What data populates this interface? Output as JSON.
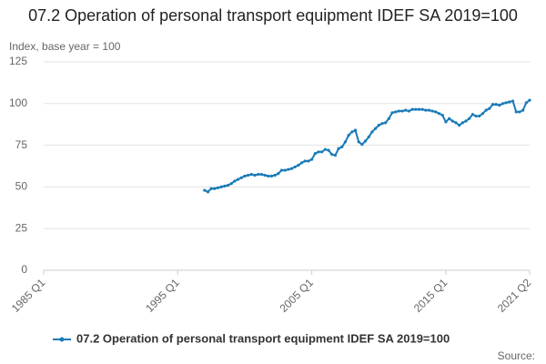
{
  "chart_data": {
    "type": "line",
    "title": "07.2 Operation of personal transport equipment IDEF SA 2019=100",
    "y_label": "Index, base year = 100",
    "source": "Source:",
    "categories": [
      "1985 Q1",
      null,
      null,
      null,
      null,
      null,
      null,
      null,
      null,
      null,
      null,
      null,
      null,
      null,
      null,
      null,
      null,
      null,
      null,
      null,
      null,
      null,
      null,
      null,
      null,
      null,
      null,
      null,
      null,
      null,
      null,
      null,
      null,
      null,
      null,
      null,
      null,
      null,
      null,
      null,
      "1995 Q1",
      null,
      null,
      null,
      null,
      null,
      null,
      null,
      null,
      null,
      null,
      null,
      null,
      null,
      null,
      null,
      null,
      null,
      null,
      null,
      null,
      null,
      null,
      null,
      null,
      null,
      null,
      null,
      null,
      null,
      null,
      null,
      null,
      null,
      null,
      null,
      null,
      null,
      null,
      null,
      "2005 Q1",
      null,
      null,
      null,
      null,
      null,
      null,
      null,
      null,
      null,
      null,
      null,
      null,
      null,
      null,
      null,
      null,
      null,
      null,
      null,
      null,
      null,
      null,
      null,
      null,
      null,
      null,
      null,
      null,
      null,
      null,
      null,
      null,
      null,
      null,
      null,
      null,
      null,
      null,
      null,
      "2015 Q1",
      null,
      null,
      null,
      null,
      null,
      null,
      null,
      null,
      null,
      null,
      null,
      null,
      null,
      null,
      null,
      null,
      null,
      null,
      null,
      null,
      null,
      null,
      null,
      null,
      "2021 Q2"
    ],
    "series": [
      {
        "name": "07.2 Operation of personal transport equipment IDEF SA 2019=100",
        "color": "#1a7bb8",
        "values": [
          null,
          null,
          null,
          null,
          null,
          null,
          null,
          null,
          null,
          null,
          null,
          null,
          null,
          null,
          null,
          null,
          null,
          null,
          null,
          null,
          null,
          null,
          null,
          null,
          null,
          null,
          null,
          null,
          null,
          null,
          null,
          null,
          null,
          null,
          null,
          null,
          null,
          null,
          null,
          null,
          null,
          null,
          null,
          null,
          null,
          null,
          null,
          null,
          48,
          47,
          49,
          49,
          49.5,
          50,
          50.5,
          51,
          52,
          53.5,
          54.5,
          55.5,
          56.5,
          57,
          57.5,
          57,
          57.5,
          57.5,
          57,
          56.5,
          56.5,
          57,
          58,
          60,
          60,
          60.5,
          61,
          62,
          63,
          64.5,
          65.5,
          65.5,
          66.5,
          70,
          71,
          71,
          72.5,
          72,
          69.5,
          69,
          73,
          74,
          77,
          81,
          83,
          84,
          77,
          75.5,
          77.5,
          80,
          83,
          85,
          87,
          88,
          88.5,
          91,
          94.5,
          95,
          95.5,
          95.5,
          96,
          95.5,
          96.5,
          96.5,
          96.5,
          96.5,
          96,
          96,
          95.5,
          95,
          94,
          93,
          89,
          91,
          89.5,
          88.5,
          87,
          88.5,
          89.5,
          91,
          93.5,
          92.5,
          92.5,
          94,
          96,
          97,
          99.5,
          99.5,
          99,
          100,
          100.5,
          101,
          101.5,
          95,
          95,
          96,
          100.5,
          102
        ]
      }
    ],
    "ylim": [
      0,
      125
    ],
    "yticks": [
      0,
      25,
      50,
      75,
      100,
      125
    ],
    "grid": true
  }
}
